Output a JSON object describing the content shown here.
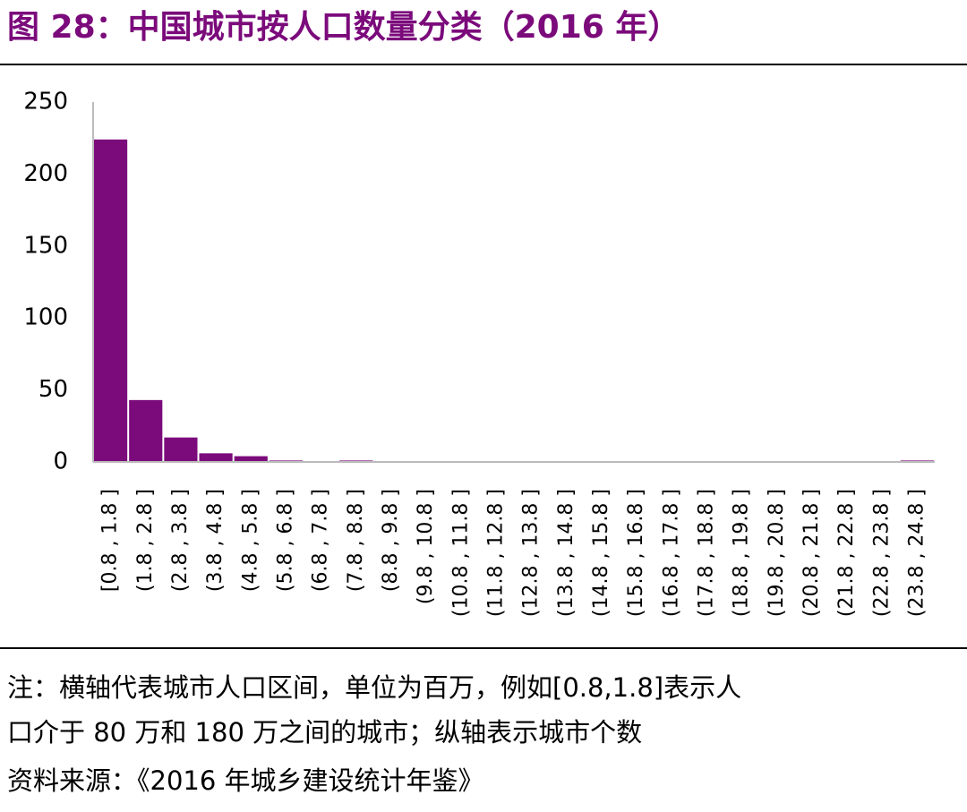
{
  "chart_data": {
    "type": "bar",
    "title": "图 28：中国城市按人口数量分类（2016 年）",
    "categories": [
      "[0.8 , 1.8 ]",
      "(1.8 , 2.8 ]",
      "(2.8 , 3.8 ]",
      "(3.8 , 4.8 ]",
      "(4.8 , 5.8 ]",
      "(5.8 , 6.8 ]",
      "(6.8 , 7.8 ]",
      "(7.8 , 8.8 ]",
      "(8.8 , 9.8 ]",
      "(9.8 , 10.8 ]",
      "(10.8 , 11.8 ]",
      "(11.8 , 12.8 ]",
      "(12.8 , 13.8 ]",
      "(13.8 , 14.8 ]",
      "(14.8 , 15.8 ]",
      "(15.8 , 16.8 ]",
      "(16.8 , 17.8 ]",
      "(17.8 , 18.8 ]",
      "(18.8 , 19.8 ]",
      "(19.8 , 20.8 ]",
      "(20.8 , 21.8 ]",
      "(21.8 , 22.8 ]",
      "(22.8 , 23.8 ]",
      "(23.8 , 24.8 ]"
    ],
    "values": [
      224,
      43,
      17,
      6,
      4,
      1,
      0,
      1,
      0,
      0,
      0,
      0,
      0,
      0,
      0,
      0,
      0,
      0,
      0,
      0,
      0,
      0,
      0,
      1
    ],
    "color": "#7b0a7b",
    "ylim": [
      0,
      250
    ],
    "yticks": [
      0,
      50,
      100,
      150,
      200,
      250
    ],
    "grid": false,
    "note": [
      "注：横轴代表城市人口区间，单位为百万，例如[0.8,1.8]表示人",
      "口介于 80 万和 180 万之间的城市；纵轴表示城市个数"
    ],
    "source": "资料来源：《2016 年城乡建设统计年鉴》"
  }
}
